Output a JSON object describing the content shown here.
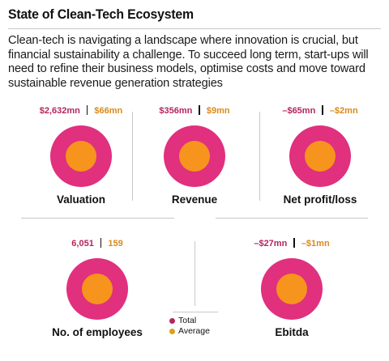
{
  "header": {
    "title": "State of Clean-Tech Ecosystem",
    "description": "Clean-tech is navigating a landscape where innovation is crucial, but financial sustainability a challenge. To succeed long term, start-ups will need to refine their business models, optimise costs and move toward sustainable revenue generation strategies"
  },
  "colors": {
    "total": "#e0307e",
    "average": "#f7941d",
    "total_text": "#b5265e",
    "average_text": "#d98a1c"
  },
  "metrics": [
    {
      "label": "Valuation",
      "total": "$2,632mn",
      "average": "$66mn"
    },
    {
      "label": "Revenue",
      "total": "$356mn",
      "average": "$9mn"
    },
    {
      "label": "Net profit/loss",
      "total": "–$65mn",
      "average": "–$2mn"
    },
    {
      "label": "No. of employees",
      "total": "6,051",
      "average": "159"
    },
    {
      "label": "Ebitda",
      "total": "–$27mn",
      "average": "–$1mn"
    }
  ],
  "legend": {
    "total_label": "Total",
    "average_label": "Average"
  }
}
